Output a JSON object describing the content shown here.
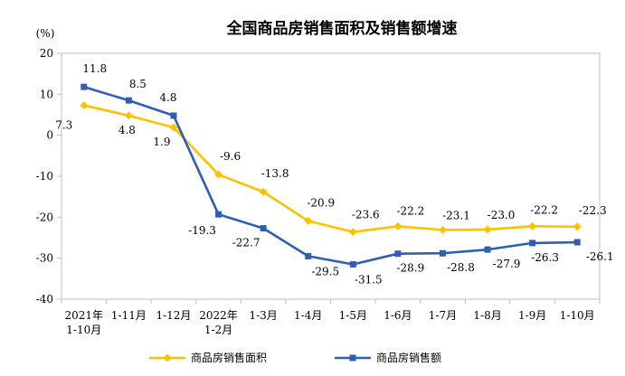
{
  "chart_data": {
    "type": "line",
    "title": "全国商品房销售面积及销售额增速",
    "yunit": "(%)",
    "ylim": [
      -40,
      20
    ],
    "yticks": [
      20,
      10,
      0,
      -10,
      -20,
      -30,
      -40
    ],
    "categories": [
      [
        "2021年",
        "1-10月"
      ],
      [
        "1-11月"
      ],
      [
        "1-12月"
      ],
      [
        "2022年",
        "1-2月"
      ],
      [
        "1-3月"
      ],
      [
        "1-4月"
      ],
      [
        "1-5月"
      ],
      [
        "1-6月"
      ],
      [
        "1-7月"
      ],
      [
        "1-8月"
      ],
      [
        "1-9月"
      ],
      [
        "1-10月"
      ]
    ],
    "series": [
      {
        "name": "商品房销售面积",
        "color": "#ffc000",
        "marker": "diamond",
        "values": [
          7.3,
          4.8,
          1.9,
          -9.6,
          -13.8,
          -20.9,
          -23.6,
          -22.2,
          -23.1,
          -23.0,
          -22.2,
          -22.3
        ],
        "labels": [
          "7.3",
          "4.8",
          "1.9",
          "-9.6",
          "-13.8",
          "-20.9",
          "-23.6",
          "-22.2",
          "-23.1",
          "-23.0",
          "-22.2",
          "-22.3"
        ]
      },
      {
        "name": "商品房销售额",
        "color": "#2e5fb4",
        "marker": "square",
        "values": [
          11.8,
          8.5,
          4.8,
          -19.3,
          -22.7,
          -29.5,
          -31.5,
          -28.9,
          -28.8,
          -27.9,
          -26.3,
          -26.1
        ],
        "labels": [
          "11.8",
          "8.5",
          "4.8",
          "-19.3",
          "-22.7",
          "-29.5",
          "-31.5",
          "-28.9",
          "-28.8",
          "-27.9",
          "-26.3",
          "-26.1"
        ]
      }
    ],
    "legend_position": "bottom",
    "grid": false
  }
}
